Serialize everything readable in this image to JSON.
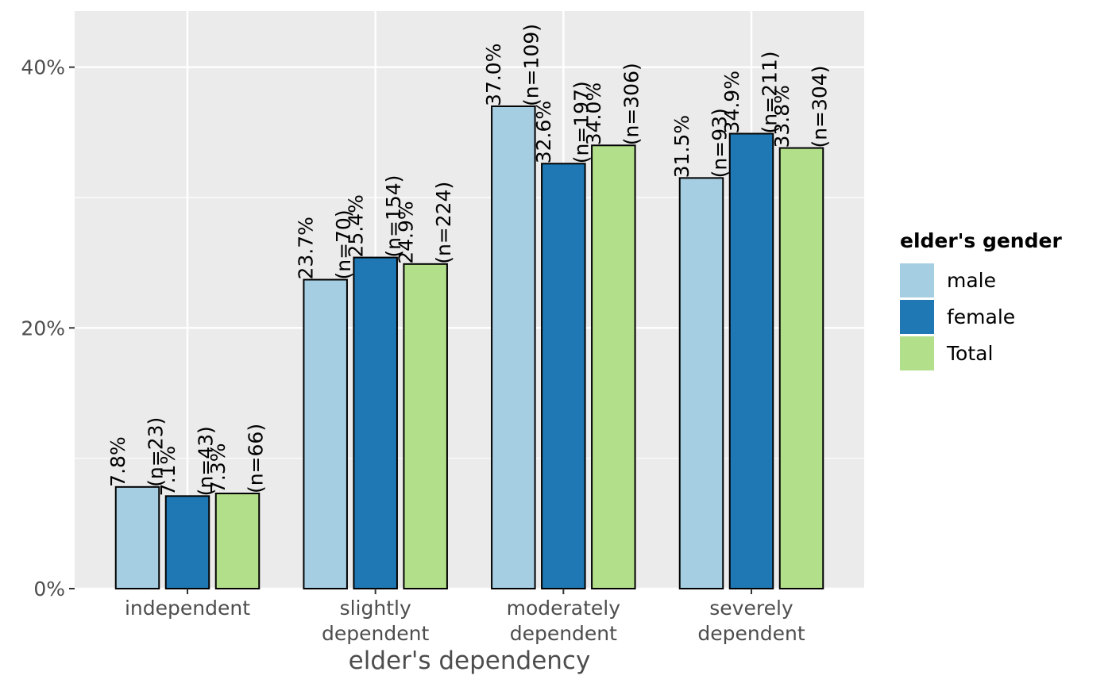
{
  "chart_data": {
    "type": "bar",
    "categories": [
      [
        "independent"
      ],
      [
        "slightly",
        "dependent"
      ],
      [
        "moderately",
        "dependent"
      ],
      [
        "severely",
        "dependent"
      ]
    ],
    "series": [
      {
        "name": "male",
        "color": "#A6CEE3",
        "values": [
          7.8,
          23.7,
          37.0,
          31.5
        ],
        "labels": [
          "7.8%",
          "23.7%",
          "37.0%",
          "31.5%"
        ],
        "counts": [
          "(n=23)",
          "(n=70)",
          "(n=109)",
          "(n=93)"
        ]
      },
      {
        "name": "female",
        "color": "#1F78B4",
        "values": [
          7.1,
          25.4,
          32.6,
          34.9
        ],
        "labels": [
          "7.1%",
          "25.4%",
          "32.6%",
          "34.9%"
        ],
        "counts": [
          "(n=43)",
          "(n=154)",
          "(n=197)",
          "(n=211)"
        ]
      },
      {
        "name": "Total",
        "color": "#B2DF8A",
        "values": [
          7.3,
          24.9,
          34.0,
          33.8
        ],
        "labels": [
          "7.3%",
          "24.9%",
          "34.0%",
          "33.8%"
        ],
        "counts": [
          "(n=66)",
          "(n=224)",
          "(n=306)",
          "(n=304)"
        ]
      }
    ],
    "xlabel": "elder's dependency",
    "ylabel": "",
    "ylim": [
      0,
      44.3
    ],
    "yticks": [
      {
        "value": 0,
        "label": "0%"
      },
      {
        "value": 20,
        "label": "20%"
      },
      {
        "value": 40,
        "label": "40%"
      }
    ],
    "yminor": [
      10,
      30
    ],
    "legend": {
      "title": "elder's gender",
      "position": "right"
    },
    "grid": true,
    "panel_color": "#EBEBEB"
  }
}
